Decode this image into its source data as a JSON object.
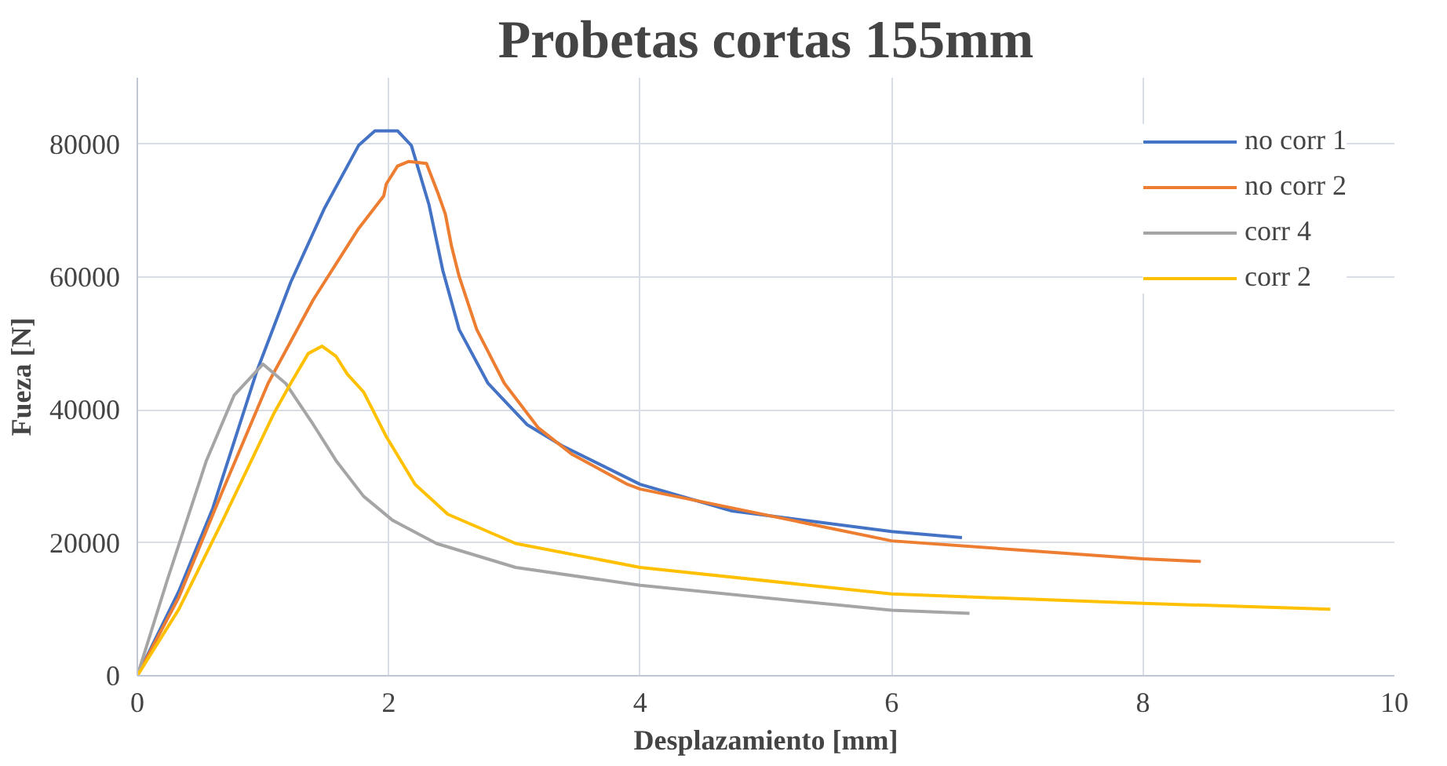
{
  "chart_data": {
    "type": "line",
    "title": "Probetas cortas 155mm",
    "xlabel": "Desplazamiento [mm]",
    "ylabel": "Fueza [N]",
    "xlim": [
      0,
      10
    ],
    "xticks": [
      0,
      2,
      4,
      6,
      8,
      10
    ],
    "ylim": [
      0,
      90000
    ],
    "yticks": [
      0,
      20000,
      40000,
      60000,
      80000
    ],
    "grid": true,
    "legend": "top right",
    "line_style": "solid",
    "series": [
      {
        "name": "no corr 1",
        "color": "#4472c4",
        "x": [
          0,
          0.33,
          0.6,
          0.95,
          1.22,
          1.49,
          1.76,
          1.89,
          2.07,
          2.18,
          2.32,
          2.43,
          2.56,
          2.79,
          3.1,
          3.38,
          4,
          4.73,
          6,
          6.56
        ],
        "values": [
          0,
          12700,
          25200,
          45800,
          59200,
          70400,
          79800,
          82000,
          82000,
          79800,
          70900,
          61000,
          52100,
          44000,
          37800,
          34600,
          28800,
          24800,
          21700,
          20800
        ]
      },
      {
        "name": "no corr 2",
        "color": "#ed7d31",
        "x": [
          0,
          0.33,
          0.68,
          1.04,
          1.4,
          1.76,
          1.96,
          1.98,
          2.07,
          2.16,
          2.3,
          2.39,
          2.45,
          2.5,
          2.56,
          2.7,
          2.92,
          3.19,
          3.46,
          3.9,
          4,
          6,
          8,
          8.46
        ],
        "values": [
          0,
          11800,
          27900,
          44000,
          56600,
          67300,
          72200,
          74000,
          76700,
          77400,
          77100,
          72700,
          69500,
          64600,
          60100,
          52100,
          44000,
          37300,
          33300,
          28800,
          28100,
          20300,
          17600,
          17200
        ]
      },
      {
        "name": "corr 4",
        "color": "#a5a5a5",
        "x": [
          0,
          0.24,
          0.55,
          0.77,
          1.0,
          1.18,
          1.4,
          1.58,
          1.8,
          2.03,
          2.38,
          3.01,
          4,
          6,
          6.62
        ],
        "values": [
          0,
          14500,
          32400,
          42200,
          46900,
          44000,
          37800,
          32400,
          27000,
          23400,
          19900,
          16300,
          13600,
          9850,
          9400
        ]
      },
      {
        "name": "corr 2",
        "color": "#ffc000",
        "x": [
          0,
          0.33,
          0.68,
          1.09,
          1.22,
          1.36,
          1.47,
          1.58,
          1.67,
          1.8,
          1.98,
          2.21,
          2.47,
          3.01,
          4,
          6,
          8,
          9.49
        ],
        "values": [
          0,
          10000,
          23400,
          39600,
          44000,
          48500,
          49600,
          48100,
          45400,
          42700,
          36000,
          28800,
          24300,
          19900,
          16300,
          12300,
          10900,
          10000
        ]
      }
    ]
  }
}
